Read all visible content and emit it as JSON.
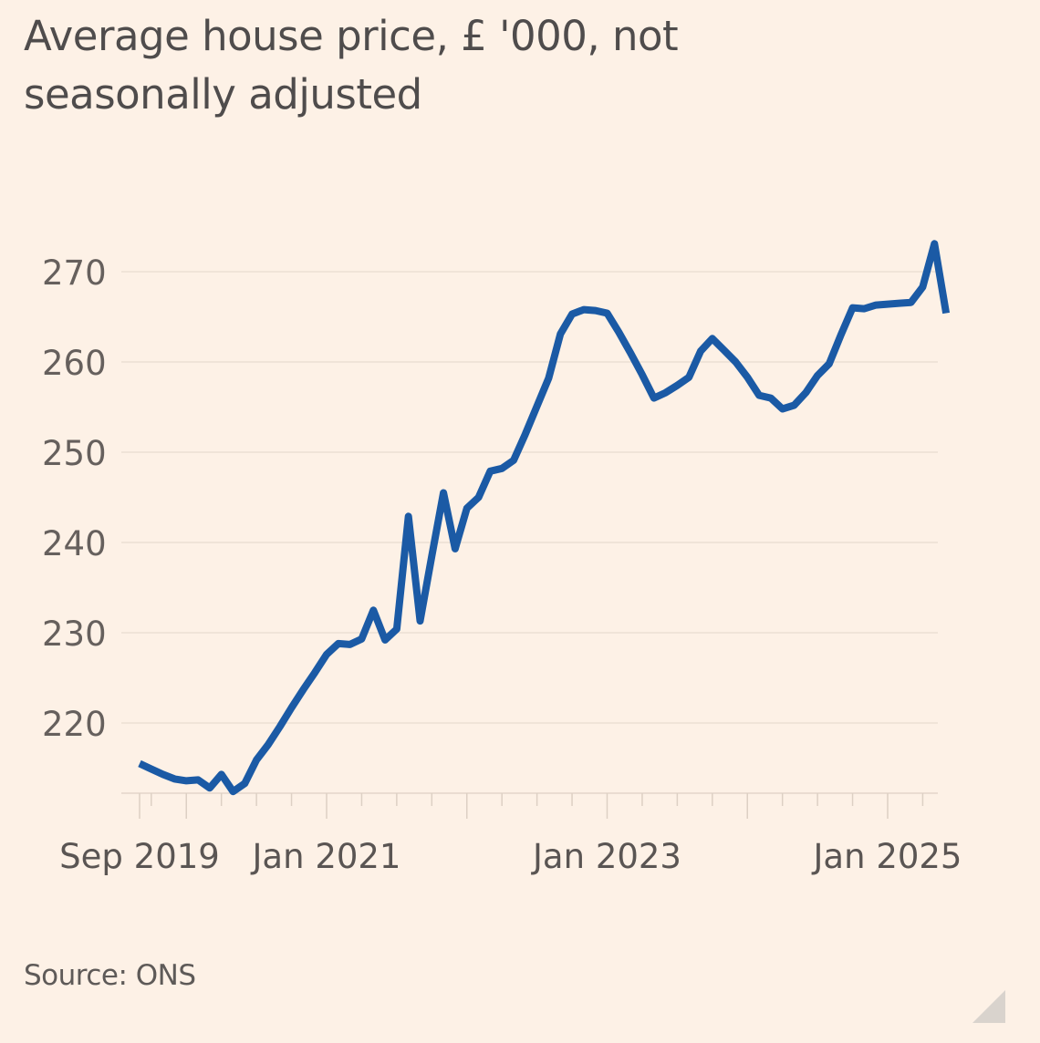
{
  "chart_data": {
    "type": "line",
    "title": "Average house price, £ '000, not seasonally adjusted",
    "xlabel": "",
    "ylabel": "",
    "source": "Source: ONS",
    "ylim": [
      212,
      274
    ],
    "yticks": [
      220,
      230,
      240,
      250,
      260,
      270
    ],
    "xlim": [
      "2019-09",
      "2025-04"
    ],
    "xtick_labels": [
      {
        "label": "Sep 2019",
        "date": "2019-09"
      },
      {
        "label": "Jan 2021",
        "date": "2021-01"
      },
      {
        "label": "Jan 2023",
        "date": "2023-01"
      },
      {
        "label": "Jan 2025",
        "date": "2025-01"
      }
    ],
    "grid": "horizontal",
    "series": [
      {
        "name": "Average house price",
        "color": "#1b5aa5",
        "start": "2019-09",
        "frequency": "monthly",
        "values": [
          215.5,
          214.9,
          214.3,
          213.8,
          213.6,
          213.7,
          212.8,
          214.3,
          212.4,
          213.3,
          215.9,
          217.6,
          219.6,
          221.7,
          223.7,
          225.6,
          227.6,
          228.8,
          228.7,
          229.3,
          232.5,
          229.2,
          230.4,
          242.9,
          231.3,
          238.5,
          245.5,
          239.3,
          243.8,
          245.0,
          247.9,
          248.2,
          249.1,
          252.0,
          255.1,
          258.2,
          263.1,
          265.3,
          265.8,
          265.7,
          265.4,
          263.3,
          261.0,
          258.6,
          256.0,
          256.6,
          257.4,
          258.3,
          261.2,
          262.6,
          261.3,
          260.0,
          258.3,
          256.3,
          256.0,
          254.8,
          255.2,
          256.6,
          258.5,
          259.8,
          263.0,
          266.0,
          265.9,
          266.3,
          266.4,
          266.5,
          266.6,
          268.3,
          273.1,
          265.4
        ]
      }
    ]
  }
}
